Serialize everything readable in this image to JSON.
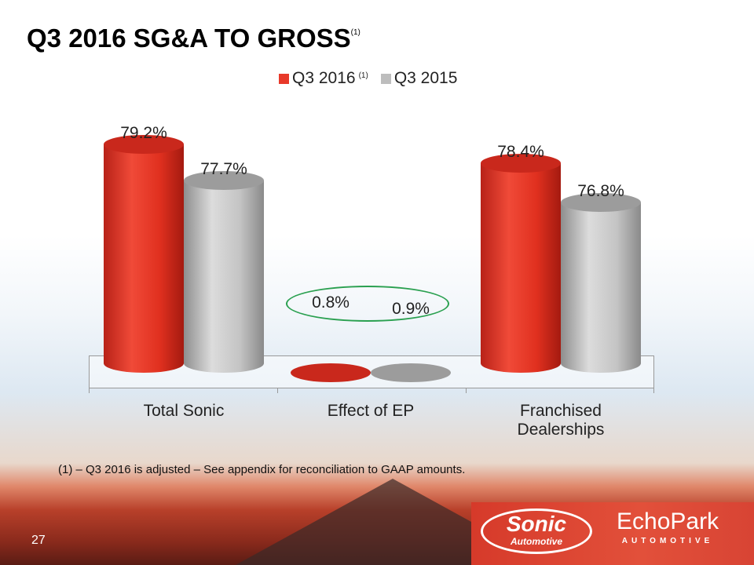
{
  "title": "Q3 2016 SG&A TO GROSS",
  "title_footnote": "(1)",
  "chart_data": {
    "type": "bar",
    "style": "3d-cylinder",
    "categories": [
      "Total Sonic",
      "Effect of EP",
      "Franchised Dealerships"
    ],
    "series": [
      {
        "name": "Q3 2016",
        "footnote": "(1)",
        "color": "#e8392a",
        "values": [
          79.2,
          0.8,
          78.4
        ],
        "labels": [
          "79.2%",
          "0.8%",
          "78.4%"
        ]
      },
      {
        "name": "Q3 2015",
        "color": "#bdbdbd",
        "values": [
          77.7,
          0.9,
          76.8
        ],
        "labels": [
          "77.7%",
          "0.9%",
          "76.8%"
        ]
      }
    ],
    "legend": "top",
    "grid": false
  },
  "footnote": "(1) – Q3 2016 is adjusted – See appendix for reconciliation to GAAP amounts.",
  "page_number": "27",
  "logos": {
    "sonic": "Sonic",
    "sonic_sub": "Automotive",
    "echopark": "EchoPark",
    "echopark_sub": "AUTOMOTIVE"
  }
}
